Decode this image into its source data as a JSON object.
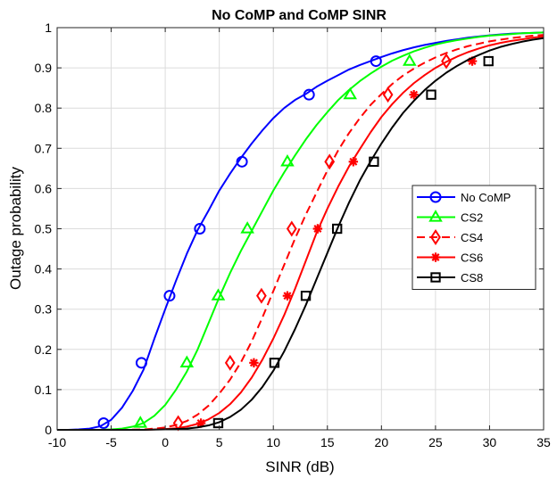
{
  "chart_data": {
    "type": "line",
    "title": "No CoMP and CoMP SINR",
    "xlabel": "SINR (dB)",
    "ylabel": "Outage probability",
    "xlim": [
      -10,
      35
    ],
    "ylim": [
      0,
      1
    ],
    "xticks": [
      "-10",
      "-5",
      "0",
      "5",
      "10",
      "15",
      "20",
      "25",
      "30",
      "35"
    ],
    "yticks": [
      "0",
      "0.1",
      "0.2",
      "0.3",
      "0.4",
      "0.5",
      "0.6",
      "0.7",
      "0.8",
      "0.9",
      "1"
    ],
    "grid": true,
    "legend_position": "right-middle",
    "series": [
      {
        "name": "No CoMP",
        "color": "#0000ff",
        "line_style": "solid",
        "marker": "circle",
        "x": [
          -10,
          -9,
          -8,
          -7,
          -6,
          -5,
          -4,
          -3,
          -2,
          -1,
          0,
          1,
          2,
          3,
          4,
          5,
          6,
          7,
          8,
          9,
          10,
          11,
          12,
          13,
          14,
          15,
          16,
          17,
          18,
          19,
          20,
          21,
          22,
          23,
          24,
          25,
          26,
          27,
          28,
          29,
          30,
          31,
          32,
          33,
          34,
          35
        ],
        "y": [
          0.0,
          0.0,
          0.001,
          0.003,
          0.009,
          0.025,
          0.055,
          0.097,
          0.15,
          0.227,
          0.3,
          0.371,
          0.438,
          0.497,
          0.545,
          0.595,
          0.637,
          0.676,
          0.712,
          0.745,
          0.775,
          0.8,
          0.82,
          0.835,
          0.853,
          0.868,
          0.882,
          0.896,
          0.907,
          0.917,
          0.927,
          0.936,
          0.944,
          0.951,
          0.957,
          0.962,
          0.967,
          0.971,
          0.975,
          0.978,
          0.981,
          0.983,
          0.985,
          0.986,
          0.987,
          0.988
        ],
        "markers_x": [
          -5.7,
          -2.2,
          0.4,
          3.2,
          7.1,
          13.3,
          19.5
        ],
        "markers_y": [
          0.0167,
          0.1667,
          0.3333,
          0.5,
          0.6667,
          0.8333,
          0.9167
        ]
      },
      {
        "name": "CS2",
        "color": "#00ff00",
        "line_style": "solid",
        "marker": "triangle",
        "x": [
          -10,
          -8,
          -6,
          -5,
          -4,
          -3,
          -2,
          -1,
          0,
          1,
          2,
          3,
          4,
          5,
          6,
          7,
          8,
          9,
          10,
          11,
          12,
          13,
          14,
          15,
          16,
          17,
          18,
          19,
          20,
          21,
          22,
          23,
          24,
          25,
          26,
          27,
          28,
          29,
          30,
          31,
          32,
          33,
          34,
          35
        ],
        "y": [
          0.0,
          0.0,
          0.0,
          0.001,
          0.003,
          0.008,
          0.017,
          0.035,
          0.062,
          0.1,
          0.145,
          0.2,
          0.265,
          0.33,
          0.39,
          0.445,
          0.495,
          0.545,
          0.595,
          0.64,
          0.682,
          0.722,
          0.758,
          0.79,
          0.82,
          0.845,
          0.867,
          0.886,
          0.903,
          0.918,
          0.93,
          0.941,
          0.95,
          0.958,
          0.964,
          0.969,
          0.973,
          0.977,
          0.98,
          0.982,
          0.984,
          0.986,
          0.987,
          0.988
        ],
        "markers_x": [
          -2.3,
          2.0,
          4.9,
          7.6,
          11.3,
          17.1,
          22.6
        ],
        "markers_y": [
          0.0167,
          0.1667,
          0.3333,
          0.5,
          0.6667,
          0.8333,
          0.9167
        ]
      },
      {
        "name": "CS4",
        "color": "#ff0000",
        "line_style": "dashed",
        "marker": "diamond",
        "x": [
          -10,
          -6,
          -4,
          -2,
          -1,
          0,
          1,
          2,
          3,
          4,
          5,
          6,
          7,
          8,
          9,
          10,
          11,
          12,
          13,
          14,
          15,
          16,
          17,
          18,
          19,
          20,
          21,
          22,
          23,
          24,
          25,
          26,
          27,
          28,
          29,
          30,
          31,
          32,
          33,
          34,
          35
        ],
        "y": [
          0.0,
          0.0,
          0.0,
          0.001,
          0.003,
          0.006,
          0.012,
          0.022,
          0.038,
          0.06,
          0.09,
          0.125,
          0.168,
          0.22,
          0.28,
          0.345,
          0.41,
          0.475,
          0.535,
          0.59,
          0.645,
          0.695,
          0.738,
          0.775,
          0.808,
          0.835,
          0.86,
          0.881,
          0.898,
          0.913,
          0.926,
          0.937,
          0.946,
          0.954,
          0.96,
          0.966,
          0.97,
          0.974,
          0.977,
          0.98,
          0.982
        ],
        "markers_x": [
          1.2,
          6.0,
          8.9,
          11.7,
          15.2,
          20.6,
          26.0
        ],
        "markers_y": [
          0.0167,
          0.1667,
          0.3333,
          0.5,
          0.6667,
          0.8333,
          0.9167
        ]
      },
      {
        "name": "CS6",
        "color": "#ff0000",
        "line_style": "solid",
        "marker": "asterisk",
        "x": [
          -10,
          -4,
          -2,
          0,
          1,
          2,
          3,
          4,
          5,
          6,
          7,
          8,
          9,
          10,
          11,
          12,
          13,
          14,
          15,
          16,
          17,
          18,
          19,
          20,
          21,
          22,
          23,
          24,
          25,
          26,
          27,
          28,
          29,
          30,
          31,
          32,
          33,
          34,
          35
        ],
        "y": [
          0.0,
          0.0,
          0.0,
          0.002,
          0.004,
          0.008,
          0.015,
          0.026,
          0.042,
          0.064,
          0.093,
          0.13,
          0.175,
          0.227,
          0.285,
          0.35,
          0.42,
          0.49,
          0.55,
          0.605,
          0.655,
          0.698,
          0.74,
          0.778,
          0.81,
          0.838,
          0.862,
          0.882,
          0.9,
          0.915,
          0.928,
          0.939,
          0.948,
          0.956,
          0.962,
          0.967,
          0.971,
          0.975,
          0.978
        ],
        "markers_x": [
          3.3,
          8.2,
          11.3,
          14.1,
          17.4,
          23.0,
          28.4
        ],
        "markers_y": [
          0.0167,
          0.1667,
          0.3333,
          0.5,
          0.6667,
          0.8333,
          0.9167
        ]
      },
      {
        "name": "CS8",
        "color": "#000000",
        "line_style": "solid",
        "marker": "square",
        "x": [
          -10,
          -2,
          0,
          2,
          3,
          4,
          5,
          6,
          7,
          8,
          9,
          10,
          11,
          12,
          13,
          14,
          15,
          16,
          17,
          18,
          19,
          20,
          21,
          22,
          23,
          24,
          25,
          26,
          27,
          28,
          29,
          30,
          31,
          32,
          33,
          34,
          35
        ],
        "y": [
          0.0,
          0.0,
          0.001,
          0.003,
          0.006,
          0.011,
          0.019,
          0.032,
          0.05,
          0.075,
          0.107,
          0.147,
          0.195,
          0.25,
          0.31,
          0.375,
          0.44,
          0.505,
          0.565,
          0.62,
          0.668,
          0.712,
          0.752,
          0.788,
          0.818,
          0.845,
          0.868,
          0.888,
          0.905,
          0.92,
          0.932,
          0.943,
          0.952,
          0.959,
          0.965,
          0.97,
          0.974
        ],
        "markers_x": [
          4.9,
          10.1,
          13.0,
          15.9,
          19.3,
          24.6,
          29.9
        ],
        "markers_y": [
          0.0167,
          0.1667,
          0.3333,
          0.5,
          0.6667,
          0.8333,
          0.9167
        ]
      }
    ]
  }
}
